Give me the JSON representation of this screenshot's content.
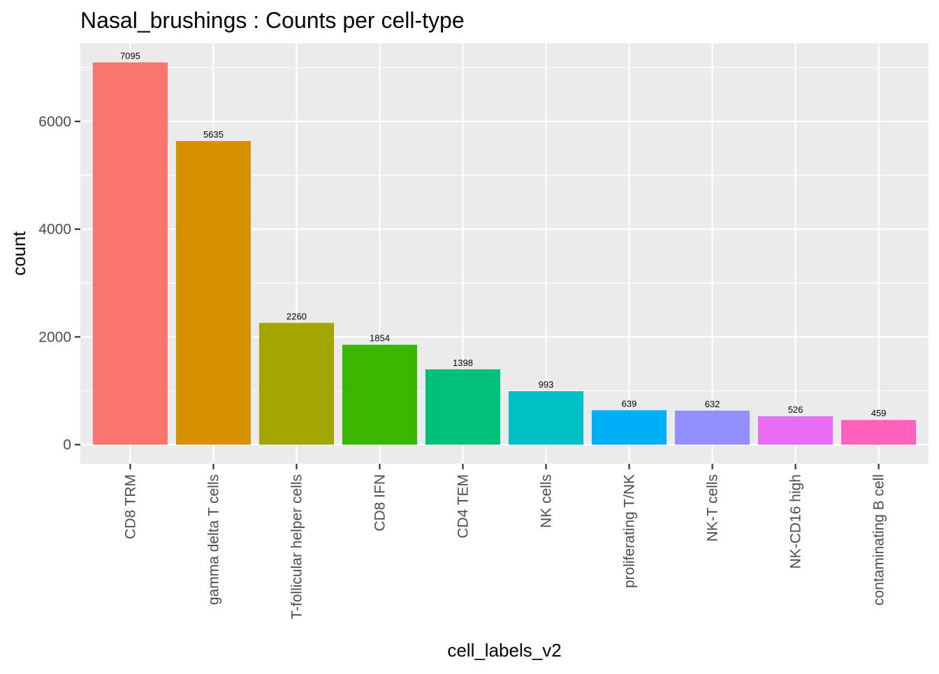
{
  "chart_data": {
    "type": "bar",
    "title": "Nasal_brushings : Counts per cell-type",
    "xlabel": "cell_labels_v2",
    "ylabel": "count",
    "categories": [
      "CD8 TRM",
      "gamma delta T cells",
      "T-follicular helper cells",
      "CD8 IFN",
      "CD4 TEM",
      "NK cells",
      "proliferating T/NK",
      "NK-T cells",
      "NK-CD16 high",
      "contaminating  B cell"
    ],
    "values": [
      7095,
      5635,
      2260,
      1854,
      1398,
      993,
      639,
      632,
      526,
      459
    ],
    "data_labels": [
      "7095",
      "5635",
      "2260",
      "1854",
      "1398",
      "993",
      "639",
      "632",
      "526",
      "459"
    ],
    "colors": [
      "#F8766D",
      "#D89000",
      "#A3A500",
      "#39B600",
      "#00BF7D",
      "#00BFC4",
      "#00B0F6",
      "#9590FF",
      "#E76BF3",
      "#FF62BC"
    ],
    "y_ticks": [
      0,
      2000,
      4000,
      6000
    ],
    "y_tick_labels": [
      "0",
      "2000",
      "4000",
      "6000"
    ],
    "ylim": [
      -354.75,
      7449.75
    ],
    "grid": true,
    "legend": "none",
    "panel_background": "#EBEBEB",
    "grid_color": "#FFFFFF"
  }
}
